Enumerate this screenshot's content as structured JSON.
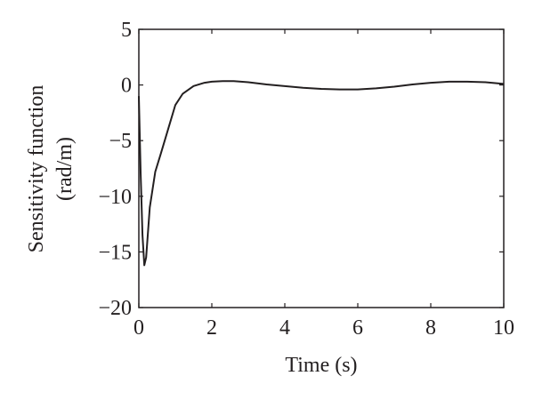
{
  "chart_data": {
    "type": "line",
    "title": "",
    "xlabel": "Time (s)",
    "ylabel": [
      "Sensitivity function",
      "(rad/m)"
    ],
    "xlim": [
      0,
      10
    ],
    "ylim": [
      -20,
      5
    ],
    "xticks": [
      0,
      2,
      4,
      6,
      8,
      10
    ],
    "yticks": [
      5,
      0,
      -5,
      -10,
      -15,
      -20
    ],
    "grid": false,
    "legend": "none",
    "line_color": "#231f20",
    "series": [
      {
        "x": [
          0,
          0.05,
          0.1,
          0.15,
          0.2,
          0.3,
          0.45,
          0.6,
          0.8,
          1.0,
          1.2,
          1.5,
          1.8,
          2.0,
          2.3,
          2.6,
          3.0,
          3.5,
          4.0,
          4.5,
          5.0,
          5.5,
          6.0,
          6.5,
          7.0,
          7.5,
          8.0,
          8.5,
          9.0,
          9.5,
          10.0
        ],
        "y": [
          -1.0,
          -8.0,
          -13.5,
          -16.2,
          -15.5,
          -11.0,
          -7.8,
          -6.2,
          -4.0,
          -1.8,
          -0.8,
          -0.1,
          0.2,
          0.3,
          0.35,
          0.35,
          0.25,
          0.05,
          -0.1,
          -0.25,
          -0.35,
          -0.4,
          -0.4,
          -0.3,
          -0.15,
          0.05,
          0.2,
          0.3,
          0.3,
          0.25,
          0.1
        ]
      }
    ]
  }
}
